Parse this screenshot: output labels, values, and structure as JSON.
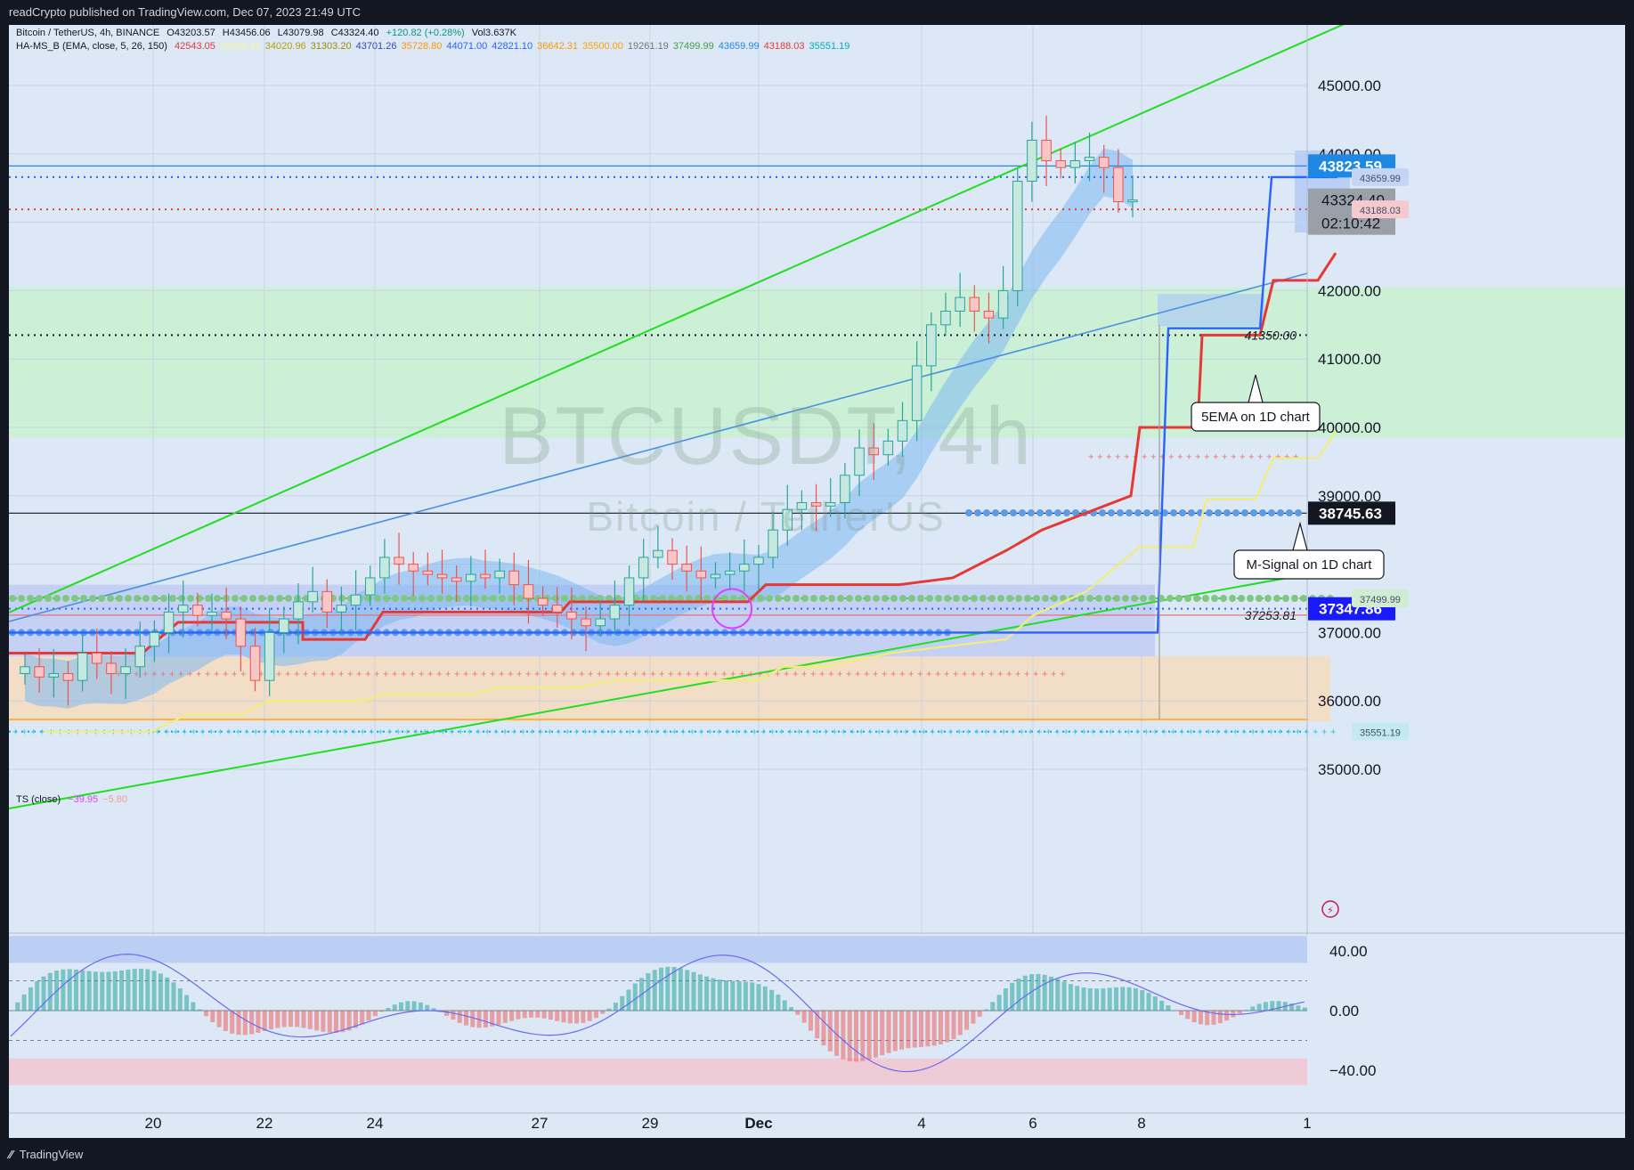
{
  "header": {
    "publisher": "readCrypto published on TradingView.com, Dec 07, 2023 21:49 UTC"
  },
  "legend": {
    "symbol_line": "Bitcoin / TetherUS, 4h, BINANCE",
    "ohlc": [
      "O43203.57",
      "H43456.06",
      "L43079.98",
      "C43324.40",
      "+120.82 (+0.28%)",
      "Vol3.637K"
    ],
    "indicator_name": "HA-MS_B (EMA, close, 5, 26, 150)",
    "indicator_values": [
      {
        "text": "42543.05",
        "color": "#e53935"
      },
      {
        "text": "39936.49",
        "color": "#f6f6a0"
      },
      {
        "text": "34020.96",
        "color": "#b5a200"
      },
      {
        "text": "31303.20",
        "color": "#9c8c00"
      },
      {
        "text": "43701.26",
        "color": "#3949ab"
      },
      {
        "text": "35728.80",
        "color": "#ff9800"
      },
      {
        "text": "44071.00",
        "color": "#2962ff"
      },
      {
        "text": "42821.10",
        "color": "#2962ff"
      },
      {
        "text": "36642.31",
        "color": "#ff9800"
      },
      {
        "text": "35500.00",
        "color": "#ffa000"
      },
      {
        "text": "19261.19",
        "color": "#777777"
      },
      {
        "text": "37499.99",
        "color": "#43a047"
      },
      {
        "text": "43659.99",
        "color": "#1e88e5"
      },
      {
        "text": "43188.03",
        "color": "#e53935"
      },
      {
        "text": "35551.19",
        "color": "#00acc1"
      }
    ],
    "ts_name": "TS (close)",
    "ts_values": [
      {
        "text": "−39.95",
        "color": "#e040fb"
      },
      {
        "text": "−5.80",
        "color": "#ef9a9a"
      }
    ]
  },
  "watermark": {
    "ticker": "BTCUSDT, 4h",
    "name": "Bitcoin / TetherUS"
  },
  "price_scale": {
    "ticks": [
      "45000.00",
      "44000.00",
      "42000.00",
      "41000.00",
      "40000.00",
      "39000.00",
      "38000.00",
      "37000.00",
      "36000.00",
      "35000.00"
    ],
    "badges": {
      "blue_level": "43823.59",
      "last_price": "43324.40",
      "countdown": "02:10:42",
      "black_level": "38745.63",
      "navy_level": "37347.86"
    }
  },
  "ts_scale": {
    "ticks": [
      "40.00",
      "0.00",
      "−40.00"
    ]
  },
  "time_axis": {
    "ticks": [
      "20",
      "22",
      "24",
      "27",
      "29",
      "Dec",
      "4",
      "6",
      "8",
      "1"
    ]
  },
  "annotations": {
    "level_41350": "41350.00",
    "level_37253": "37253.81",
    "tag_43659": "43659.99",
    "tag_43188": "43188.03",
    "tag_37499": "37499.99",
    "tag_35551": "35551.19",
    "callout_5ema": "5EMA on 1D chart",
    "callout_msignal": "M-Signal on 1D chart"
  },
  "chart_data": {
    "type": "candlestick",
    "symbol": "BTCUSDT",
    "timeframe": "4h",
    "ylim": [
      34500,
      45500
    ],
    "xlabels": [
      "20",
      "22",
      "24",
      "27",
      "29",
      "Dec",
      "4",
      "6",
      "8",
      "1"
    ],
    "last_close": 43324.4,
    "closes_approx": [
      36500,
      36350,
      36400,
      36300,
      36700,
      36550,
      36400,
      36500,
      36800,
      37000,
      37300,
      37400,
      37250,
      37300,
      37200,
      36800,
      36300,
      37000,
      37200,
      37450,
      37600,
      37300,
      37400,
      37550,
      37800,
      38100,
      38000,
      37900,
      37850,
      37800,
      37750,
      37850,
      37800,
      37900,
      37700,
      37500,
      37400,
      37300,
      37200,
      37100,
      37200,
      37400,
      37800,
      38100,
      38200,
      38000,
      37900,
      37800,
      37850,
      37900,
      38000,
      38100,
      38500,
      38800,
      38900,
      38850,
      38900,
      39300,
      39700,
      39600,
      39800,
      40100,
      40900,
      41500,
      41700,
      41900,
      41700,
      41600,
      42000,
      43600,
      44200,
      43900,
      43800,
      43900,
      43950,
      43800,
      43300,
      43324.4
    ],
    "levels": [
      {
        "value": 43823.59,
        "color": "#1e88e5"
      },
      {
        "value": 43659.99,
        "color": "#2962ff",
        "style": "dotted"
      },
      {
        "value": 43188.03,
        "color": "#e53935",
        "style": "dotted"
      },
      {
        "value": 41350.0,
        "color": "#131722",
        "style": "dotted"
      },
      {
        "value": 38745.63,
        "color": "#131722"
      },
      {
        "value": 37499.99,
        "color": "#66bb6a",
        "style": "dotted"
      },
      {
        "value": 37347.86,
        "color": "#2962ff",
        "style": "dotted"
      },
      {
        "value": 37253.81,
        "color": "#e57373"
      },
      {
        "value": 35728.8,
        "color": "#ff9800"
      },
      {
        "value": 35551.19,
        "color": "#00acc1",
        "style": "dotted"
      }
    ],
    "zones": [
      {
        "from": 39850,
        "to": 42050,
        "color": "#c9f0d4"
      },
      {
        "from": 35700,
        "to": 36650,
        "color": "#f2dcc3"
      }
    ],
    "ts_ylim": [
      -50,
      50
    ]
  },
  "colors": {
    "bg_outer": "#131722",
    "bg_chart": "#dce8f5",
    "up": "#26a69a",
    "down": "#ef5350",
    "ema5": "#e53935",
    "msignal": "#f2ed7a",
    "blue_step": "#2962ff",
    "trend_green": "#22dd22",
    "trend_blue": "#4a90e2"
  }
}
